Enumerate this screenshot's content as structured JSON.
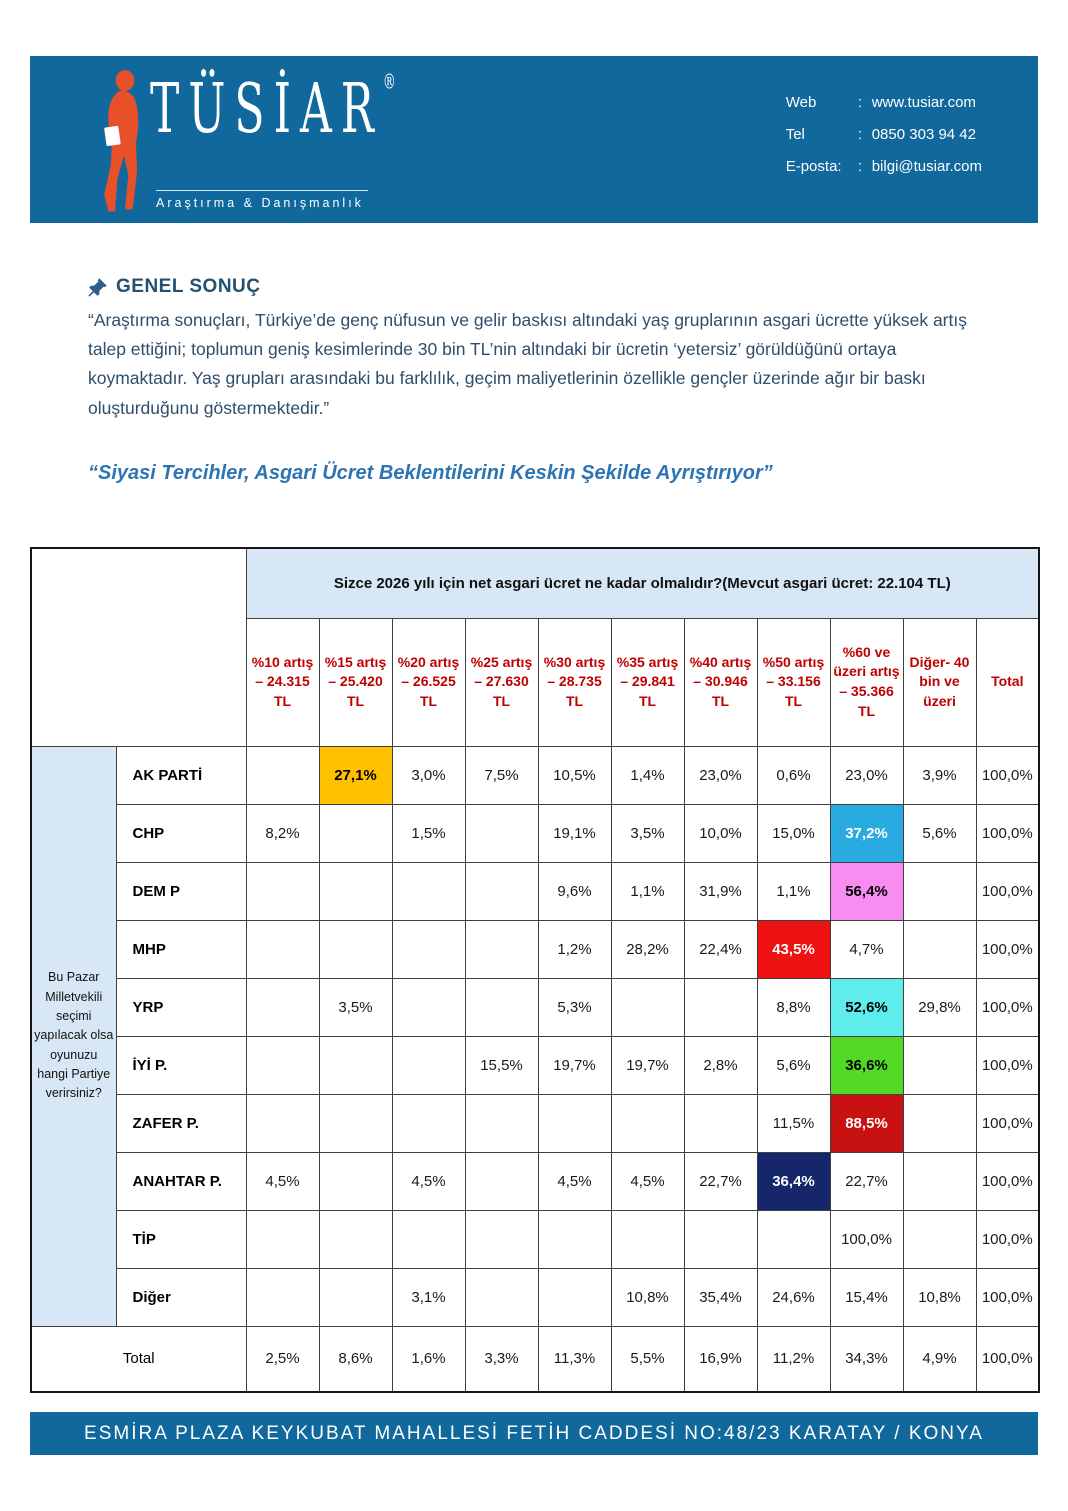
{
  "colors": {
    "banner_blue": "#10689D",
    "light_blue_cell": "#D7E7F5",
    "column_header_red": "#C00000",
    "highlight_amber": "#FFC000",
    "highlight_sky": "#29ABE2",
    "highlight_pink": "#F88CF0",
    "highlight_red": "#EF1212",
    "highlight_cyan": "#5FECEC",
    "highlight_green": "#52D926",
    "highlight_darkred": "#C81111",
    "highlight_navy": "#16266B"
  },
  "header": {
    "logo": {
      "brand": "TÜSİAR",
      "registered": "®",
      "tagline": "Araştırma & Danışmanlık"
    },
    "contact": [
      {
        "label": "Web",
        "sep": ":",
        "value": "www.tusiar.com"
      },
      {
        "label": "Tel",
        "sep": ":",
        "value": "0850 303 94 42"
      },
      {
        "label": "E-posta:",
        "sep": ":",
        "value": "bilgi@tusiar.com"
      }
    ]
  },
  "section": {
    "title": "GENEL SONUÇ",
    "paragraph": "“Araştırma sonuçları, Türkiye’de genç nüfusun ve gelir baskısı altındaki yaş gruplarının asgari ücrette yüksek artış talep ettiğini; toplumun geniş kesimlerinde 30 bin TL’nin altındaki bir ücretin ‘yetersiz’ görüldüğünü ortaya koymaktadır. Yaş grupları arasındaki bu farklılık, geçim maliyetlerinin özellikle gençler üzerinde ağır bir baskı oluşturduğunu göstermektedir.”",
    "subtitle": "“Siyasi Tercihler, Asgari Ücret Beklentilerini Keskin Şekilde Ayrıştırıyor”"
  },
  "table": {
    "question": "Sizce 2026 yılı için net asgari ücret ne kadar olmalıdır?(Mevcut asgari ücret: 22.104 TL)",
    "side_question": "Bu Pazar Milletvekili seçimi yapılacak olsa oyunuzu hangi Partiye verirsiniz?",
    "columns": [
      "%10 artış – 24.315 TL",
      "%15 artış – 25.420 TL",
      "%20 artış – 26.525 TL",
      "%25 artış – 27.630 TL",
      "%30 artış – 28.735 TL",
      "%35 artış – 29.841 TL",
      "%40 artış – 30.946 TL",
      "%50 artış – 33.156 TL",
      "%60 ve üzeri artış – 35.366 TL",
      "Diğer- 40 bin ve üzeri",
      "Total"
    ],
    "rows": [
      {
        "party": "AK PARTİ",
        "values": [
          "",
          "27,1%",
          "3,0%",
          "7,5%",
          "10,5%",
          "1,4%",
          "23,0%",
          "0,6%",
          "23,0%",
          "3,9%",
          "100,0%"
        ],
        "highlight": {
          "index": 1,
          "bg": "#FFC000",
          "fg": "#000000"
        }
      },
      {
        "party": "CHP",
        "values": [
          "8,2%",
          "",
          "1,5%",
          "",
          "19,1%",
          "3,5%",
          "10,0%",
          "15,0%",
          "37,2%",
          "5,6%",
          "100,0%"
        ],
        "highlight": {
          "index": 8,
          "bg": "#29ABE2",
          "fg": "#FFFFFF"
        }
      },
      {
        "party": "DEM P",
        "values": [
          "",
          "",
          "",
          "",
          "9,6%",
          "1,1%",
          "31,9%",
          "1,1%",
          "56,4%",
          "",
          "100,0%"
        ],
        "highlight": {
          "index": 8,
          "bg": "#F88CF0",
          "fg": "#000000"
        }
      },
      {
        "party": "MHP",
        "values": [
          "",
          "",
          "",
          "",
          "1,2%",
          "28,2%",
          "22,4%",
          "43,5%",
          "4,7%",
          "",
          "100,0%"
        ],
        "highlight": {
          "index": 7,
          "bg": "#EF1212",
          "fg": "#FFFFFF"
        }
      },
      {
        "party": "YRP",
        "values": [
          "",
          "3,5%",
          "",
          "",
          "5,3%",
          "",
          "",
          "8,8%",
          "52,6%",
          "29,8%",
          "100,0%"
        ],
        "highlight": {
          "index": 8,
          "bg": "#5FECEC",
          "fg": "#000000"
        }
      },
      {
        "party": "İYİ P.",
        "values": [
          "",
          "",
          "",
          "15,5%",
          "19,7%",
          "19,7%",
          "2,8%",
          "5,6%",
          "36,6%",
          "",
          "100,0%"
        ],
        "highlight": {
          "index": 8,
          "bg": "#52D926",
          "fg": "#000000"
        }
      },
      {
        "party": "ZAFER P.",
        "values": [
          "",
          "",
          "",
          "",
          "",
          "",
          "",
          "11,5%",
          "88,5%",
          "",
          "100,0%"
        ],
        "highlight": {
          "index": 8,
          "bg": "#C81111",
          "fg": "#FFFFFF"
        }
      },
      {
        "party": "ANAHTAR P.",
        "values": [
          "4,5%",
          "",
          "4,5%",
          "",
          "4,5%",
          "4,5%",
          "22,7%",
          "36,4%",
          "22,7%",
          "",
          "100,0%"
        ],
        "highlight": {
          "index": 7,
          "bg": "#16266B",
          "fg": "#FFFFFF"
        }
      },
      {
        "party": "TİP",
        "values": [
          "",
          "",
          "",
          "",
          "",
          "",
          "",
          "",
          "100,0%",
          "",
          "100,0%"
        ],
        "highlight": null
      },
      {
        "party": "Diğer",
        "values": [
          "",
          "",
          "3,1%",
          "",
          "",
          "10,8%",
          "35,4%",
          "24,6%",
          "15,4%",
          "10,8%",
          "100,0%"
        ],
        "highlight": null
      }
    ],
    "total": {
      "label": "Total",
      "values": [
        "2,5%",
        "8,6%",
        "1,6%",
        "3,3%",
        "11,3%",
        "5,5%",
        "16,9%",
        "11,2%",
        "34,3%",
        "4,9%",
        "100,0%"
      ]
    }
  },
  "footer": {
    "address": "ESMİRA PLAZA KEYKUBAT MAHALLESİ FETİH CADDESİ NO:48/23 KARATAY / KONYA"
  }
}
